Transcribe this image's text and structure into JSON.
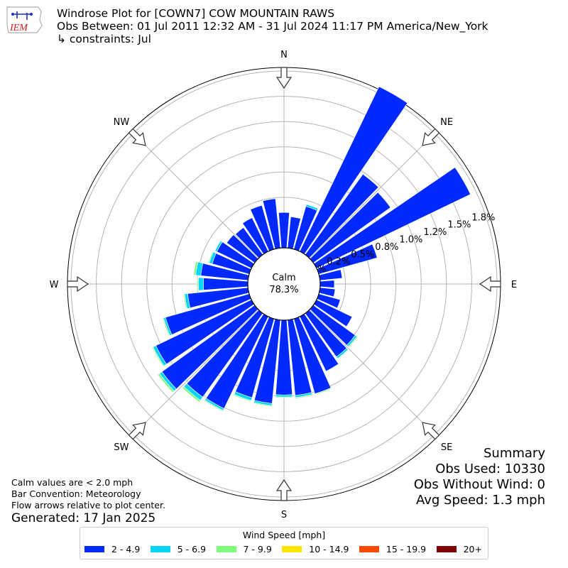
{
  "header": {
    "logo_text": "IEM",
    "title_line1": "Windrose Plot for [COWN7] COW MOUNTAIN RAWS",
    "title_line2": "Obs Between: 01 Jul 2011 12:32 AM - 31 Jul 2024 11:17 PM America/New_York",
    "title_line3": "↳ constraints: Jul"
  },
  "notes": {
    "line1": "Calm values are < 2.0 mph",
    "line2": "Bar Convention: Meteorology",
    "line3": "Flow arrows relative to plot center.",
    "generated": "Generated: 17 Jan 2025"
  },
  "summary": {
    "title": "Summary",
    "obs_used": "Obs Used: 10330",
    "obs_without_wind": "Obs Without Wind: 0",
    "avg_speed": "Avg Speed: 1.3 mph"
  },
  "legend": {
    "title": "Wind Speed [mph]",
    "items": [
      {
        "label": "2 - 4.9",
        "color": "#0029ff"
      },
      {
        "label": "5 - 6.9",
        "color": "#00d4ff"
      },
      {
        "label": "7 - 9.9",
        "color": "#7dff7a"
      },
      {
        "label": "10 - 14.9",
        "color": "#ffe600"
      },
      {
        "label": "15 - 19.9",
        "color": "#ff4a00"
      },
      {
        "label": "20+",
        "color": "#7f0000"
      }
    ]
  },
  "chart_data": {
    "type": "windrose",
    "calm_label": "Calm",
    "calm_value": "78.3%",
    "directions": [
      "N",
      "NE",
      "E",
      "SE",
      "S",
      "SW",
      "W",
      "NW"
    ],
    "radial_tick_values": [
      0.0,
      0.25,
      0.5,
      0.75,
      1.0,
      1.25,
      1.5,
      1.75
    ],
    "radial_tick_labels": [
      "0.0%",
      "0.2%",
      "0.5%",
      "0.8%",
      "1.0%",
      "1.2%",
      "1.5%",
      "1.8%"
    ],
    "radial_max": 1.75,
    "speed_bins": [
      "2 - 4.9",
      "5 - 6.9",
      "7 - 9.9",
      "10 - 14.9",
      "15 - 19.9",
      "20+"
    ],
    "sector_directions_deg": [
      0,
      10,
      20,
      30,
      40,
      50,
      60,
      70,
      80,
      90,
      100,
      110,
      120,
      130,
      140,
      150,
      160,
      170,
      180,
      190,
      200,
      210,
      220,
      230,
      240,
      250,
      260,
      270,
      280,
      290,
      300,
      310,
      320,
      330,
      340,
      350
    ],
    "series": [
      {
        "name": "2 - 4.9",
        "values": [
          0.35,
          0.31,
          0.44,
          1.81,
          0.98,
          0.94,
          1.69,
          0.6,
          0.22,
          0.14,
          0.15,
          0.22,
          0.39,
          0.51,
          0.53,
          0.6,
          0.77,
          0.75,
          0.74,
          0.83,
          0.81,
          1.01,
          1.02,
          1.13,
          1.05,
          0.86,
          0.6,
          0.44,
          0.47,
          0.38,
          0.38,
          0.34,
          0.33,
          0.37,
          0.45,
          0.49
        ]
      },
      {
        "name": "5 - 6.9",
        "values": [
          0.0,
          0.0,
          0.02,
          0.0,
          0.0,
          0.0,
          0.0,
          0.0,
          0.0,
          0.0,
          0.0,
          0.0,
          0.0,
          0.02,
          0.02,
          0.0,
          0.0,
          0.02,
          0.02,
          0.02,
          0.03,
          0.02,
          0.04,
          0.03,
          0.03,
          0.02,
          0.03,
          0.05,
          0.05,
          0.03,
          0.02,
          0.0,
          0.0,
          0.0,
          0.0,
          0.0
        ]
      },
      {
        "name": "7 - 9.9",
        "values": [
          0.0,
          0.0,
          0.0,
          0.0,
          0.0,
          0.0,
          0.0,
          0.0,
          0.0,
          0.0,
          0.0,
          0.0,
          0.0,
          0.01,
          0.0,
          0.0,
          0.01,
          0.01,
          0.01,
          0.01,
          0.01,
          0.01,
          0.02,
          0.02,
          0.01,
          0.01,
          0.01,
          0.01,
          0.02,
          0.01,
          0.0,
          0.0,
          0.0,
          0.0,
          0.0,
          0.0
        ]
      },
      {
        "name": "10 - 14.9",
        "values": [
          0,
          0,
          0,
          0,
          0,
          0,
          0,
          0,
          0,
          0,
          0,
          0,
          0,
          0,
          0,
          0,
          0,
          0,
          0,
          0,
          0,
          0,
          0,
          0,
          0,
          0,
          0,
          0,
          0,
          0,
          0,
          0,
          0,
          0,
          0,
          0
        ]
      },
      {
        "name": "15 - 19.9",
        "values": [
          0,
          0,
          0,
          0,
          0,
          0,
          0,
          0,
          0,
          0,
          0,
          0,
          0,
          0,
          0,
          0,
          0,
          0,
          0,
          0,
          0,
          0,
          0,
          0,
          0,
          0,
          0,
          0,
          0,
          0,
          0,
          0,
          0,
          0,
          0,
          0
        ]
      },
      {
        "name": "20+",
        "values": [
          0,
          0,
          0,
          0,
          0,
          0,
          0,
          0,
          0,
          0,
          0,
          0,
          0,
          0,
          0,
          0,
          0,
          0,
          0,
          0,
          0,
          0,
          0,
          0,
          0,
          0,
          0,
          0,
          0,
          0,
          0,
          0,
          0,
          0,
          0,
          0
        ]
      }
    ]
  }
}
